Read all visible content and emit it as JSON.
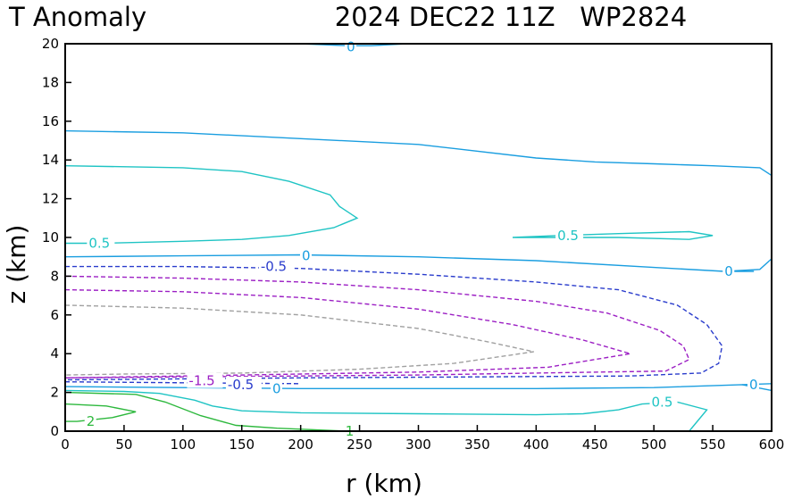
{
  "chart_data": {
    "type": "contour",
    "title_left": "T Anomaly",
    "title_right": "2024 DEC22 11Z   WP2824",
    "xlabel": "r (km)",
    "ylabel": "z (km)",
    "xlim": [
      0,
      600
    ],
    "ylim": [
      0,
      20
    ],
    "xticks": [
      0,
      50,
      100,
      150,
      200,
      250,
      300,
      350,
      400,
      450,
      500,
      550,
      600
    ],
    "yticks": [
      0,
      2,
      4,
      6,
      8,
      10,
      12,
      14,
      16,
      18,
      20
    ],
    "grid": false,
    "colors": {
      "level_2": "#2db83d",
      "level_1": "#2db83d",
      "level_0.5": "#1fc4c4",
      "level_0": "#1a9ee0",
      "level_-0.5": "#2a3ccc",
      "level_-1": "#9c1fc4",
      "level_-1.5": "#9c1fc4",
      "level_-2": "#a0a0a0"
    },
    "contours": [
      {
        "level": 0,
        "dashed": false,
        "color": "#1a9ee0",
        "points": [
          [
            200,
            20.0
          ],
          [
            240,
            19.9
          ],
          [
            260,
            19.9
          ],
          [
            290,
            20.0
          ]
        ],
        "label": "0",
        "label_at": [
          239,
          19.85
        ]
      },
      {
        "level": 0,
        "dashed": false,
        "color": "#1a9ee0",
        "points": [
          [
            0,
            15.5
          ],
          [
            100,
            15.4
          ],
          [
            200,
            15.1
          ],
          [
            300,
            14.8
          ],
          [
            400,
            14.1
          ],
          [
            450,
            13.9
          ],
          [
            500,
            13.8
          ],
          [
            550,
            13.7
          ],
          [
            590,
            13.6
          ],
          [
            600,
            13.2
          ]
        ]
      },
      {
        "level": 0.5,
        "dashed": false,
        "color": "#1fc4c4",
        "points": [
          [
            0,
            13.7
          ],
          [
            100,
            13.6
          ],
          [
            150,
            13.4
          ],
          [
            190,
            12.9
          ],
          [
            225,
            12.2
          ],
          [
            233,
            11.6
          ],
          [
            248,
            11.0
          ],
          [
            228,
            10.5
          ],
          [
            190,
            10.1
          ],
          [
            150,
            9.9
          ],
          [
            100,
            9.8
          ],
          [
            30,
            9.7
          ],
          [
            0,
            9.7
          ]
        ],
        "label": "0.5",
        "label_at": [
          20,
          9.7
        ]
      },
      {
        "level": 0.5,
        "dashed": false,
        "color": "#1fc4c4",
        "points": [
          [
            380,
            10.0
          ],
          [
            420,
            10.1
          ],
          [
            470,
            10.2
          ],
          [
            530,
            10.3
          ],
          [
            550,
            10.1
          ],
          [
            530,
            9.9
          ],
          [
            470,
            10.0
          ],
          [
            420,
            10.0
          ],
          [
            380,
            10.0
          ]
        ],
        "label": "0.5",
        "label_at": [
          418,
          10.1
        ]
      },
      {
        "level": 0,
        "dashed": false,
        "color": "#1a9ee0",
        "points": [
          [
            0,
            9.0
          ],
          [
            100,
            9.05
          ],
          [
            200,
            9.1
          ],
          [
            300,
            9.0
          ],
          [
            400,
            8.8
          ],
          [
            500,
            8.45
          ],
          [
            560,
            8.25
          ],
          [
            590,
            8.35
          ],
          [
            600,
            8.9
          ]
        ],
        "label": "0",
        "label_at": [
          201,
          9.05
        ]
      },
      {
        "level": 0,
        "dashed": false,
        "color": "#1a9ee0",
        "points": [
          [
            560,
            8.25
          ],
          [
            585,
            8.25
          ]
        ],
        "label": "0",
        "label_at": [
          560,
          8.25
        ]
      },
      {
        "level": -0.5,
        "dashed": true,
        "color": "#2a3ccc",
        "points": [
          [
            0,
            8.5
          ],
          [
            100,
            8.5
          ],
          [
            200,
            8.4
          ],
          [
            300,
            8.1
          ],
          [
            400,
            7.7
          ],
          [
            470,
            7.3
          ],
          [
            520,
            6.5
          ],
          [
            545,
            5.5
          ],
          [
            558,
            4.4
          ],
          [
            555,
            3.5
          ],
          [
            540,
            3.0
          ],
          [
            480,
            2.85
          ],
          [
            350,
            2.8
          ],
          [
            200,
            2.75
          ],
          [
            100,
            2.7
          ],
          [
            0,
            2.65
          ]
        ],
        "label": "-0.5",
        "label_at": [
          166,
          8.5
        ]
      },
      {
        "level": -1,
        "dashed": true,
        "color": "#9c1fc4",
        "points": [
          [
            0,
            8.0
          ],
          [
            100,
            7.9
          ],
          [
            200,
            7.7
          ],
          [
            300,
            7.3
          ],
          [
            400,
            6.7
          ],
          [
            460,
            6.1
          ],
          [
            505,
            5.2
          ],
          [
            525,
            4.4
          ],
          [
            530,
            3.7
          ],
          [
            510,
            3.1
          ],
          [
            400,
            3.0
          ],
          [
            300,
            2.9
          ],
          [
            200,
            2.85
          ],
          [
            100,
            2.8
          ],
          [
            0,
            2.75
          ]
        ]
      },
      {
        "level": -1.5,
        "dashed": true,
        "color": "#9c1fc4",
        "points": [
          [
            0,
            7.3
          ],
          [
            100,
            7.2
          ],
          [
            200,
            6.9
          ],
          [
            300,
            6.3
          ],
          [
            380,
            5.5
          ],
          [
            440,
            4.7
          ],
          [
            480,
            4.0
          ],
          [
            410,
            3.3
          ],
          [
            300,
            3.05
          ],
          [
            200,
            2.95
          ],
          [
            100,
            2.85
          ],
          [
            0,
            2.75
          ]
        ],
        "label": "-1.5",
        "label_at": [
          105,
          2.6
        ]
      },
      {
        "level": -2,
        "dashed": true,
        "color": "#a0a0a0",
        "points": [
          [
            0,
            6.5
          ],
          [
            100,
            6.35
          ],
          [
            200,
            6.0
          ],
          [
            300,
            5.3
          ],
          [
            360,
            4.6
          ],
          [
            398,
            4.1
          ],
          [
            330,
            3.5
          ],
          [
            250,
            3.2
          ],
          [
            150,
            3.0
          ],
          [
            50,
            2.95
          ],
          [
            0,
            2.9
          ]
        ]
      },
      {
        "level": -0.5,
        "dashed": true,
        "color": "#2a3ccc",
        "points": [
          [
            0,
            2.55
          ],
          [
            100,
            2.5
          ],
          [
            200,
            2.45
          ]
        ],
        "label": "-0.5",
        "label_at": [
          138,
          2.4
        ]
      },
      {
        "level": 0,
        "dashed": false,
        "color": "#1a9ee0",
        "points": [
          [
            0,
            2.3
          ],
          [
            100,
            2.25
          ],
          [
            200,
            2.2
          ],
          [
            300,
            2.2
          ],
          [
            400,
            2.2
          ],
          [
            500,
            2.25
          ],
          [
            575,
            2.4
          ],
          [
            600,
            2.1
          ]
        ],
        "label": "0",
        "label_at": [
          176,
          2.2
        ]
      },
      {
        "level": 0,
        "dashed": false,
        "color": "#1a9ee0",
        "points": [
          [
            575,
            2.4
          ],
          [
            600,
            2.45
          ]
        ],
        "label": "0",
        "label_at": [
          581,
          2.4
        ]
      },
      {
        "level": 0.5,
        "dashed": false,
        "color": "#1fc4c4",
        "points": [
          [
            0,
            2.1
          ],
          [
            50,
            2.05
          ],
          [
            80,
            1.95
          ],
          [
            110,
            1.6
          ],
          [
            125,
            1.3
          ],
          [
            150,
            1.05
          ],
          [
            200,
            0.95
          ],
          [
            300,
            0.9
          ],
          [
            400,
            0.85
          ],
          [
            440,
            0.9
          ],
          [
            470,
            1.1
          ],
          [
            490,
            1.4
          ],
          [
            520,
            1.5
          ],
          [
            545,
            1.1
          ],
          [
            530,
            0.0
          ]
        ],
        "label": "0.5",
        "label_at": [
          498,
          1.5
        ]
      },
      {
        "level": 1,
        "dashed": false,
        "color": "#2db83d",
        "points": [
          [
            0,
            2.0
          ],
          [
            60,
            1.9
          ],
          [
            85,
            1.5
          ],
          [
            115,
            0.8
          ],
          [
            145,
            0.3
          ],
          [
            180,
            0.15
          ],
          [
            240,
            0.0
          ]
        ],
        "label": "1",
        "label_at": [
          238,
          0.0
        ]
      },
      {
        "level": 2,
        "dashed": false,
        "color": "#2db83d",
        "points": [
          [
            0,
            1.4
          ],
          [
            35,
            1.3
          ],
          [
            60,
            1.0
          ],
          [
            40,
            0.7
          ],
          [
            10,
            0.5
          ],
          [
            0,
            0.5
          ]
        ],
        "label": "2",
        "label_at": [
          18,
          0.5
        ]
      }
    ]
  }
}
